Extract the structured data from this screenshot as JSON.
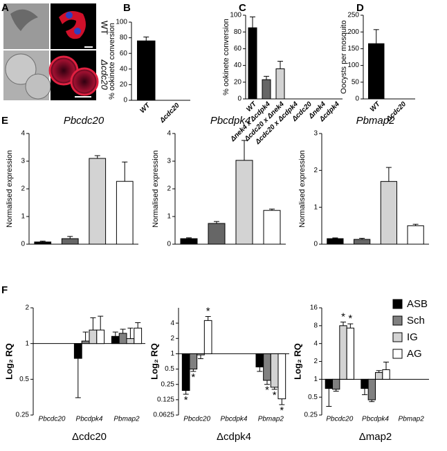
{
  "panel_labels": [
    "A",
    "B",
    "C",
    "D",
    "E",
    "F"
  ],
  "panel_a": {
    "labels": [
      "WT",
      "Δcdc20"
    ]
  },
  "legend": {
    "items": [
      {
        "name": "ASB",
        "color": "#000000"
      },
      {
        "name": "Sch",
        "color": "#808080"
      },
      {
        "name": "IG",
        "color": "#d3d3d3"
      },
      {
        "name": "AG",
        "color": "#ffffff"
      }
    ]
  },
  "chart_data": [
    {
      "type": "bar",
      "ylabel": "% ookinete conversion",
      "categories": [
        "WT",
        "Δcdc20"
      ],
      "values": [
        76,
        0
      ],
      "errors": [
        5,
        0
      ],
      "colors": [
        "#000000",
        "#000000"
      ],
      "ylim": [
        0,
        100
      ],
      "yticks": [
        0,
        20,
        40,
        60,
        80,
        100
      ]
    },
    {
      "type": "bar",
      "ylabel": "% ookinete conversion",
      "categories": [
        "WT",
        "Δnek4 x Δcdpk4",
        "Δcdc20 x Δnek4",
        "Δcdc20 x Δcdpk4",
        "Δcdc20",
        "Δnek4",
        "Δcdpk4"
      ],
      "values": [
        85,
        23,
        36,
        0,
        0,
        0,
        0
      ],
      "errors": [
        13,
        4,
        9,
        0,
        0,
        0,
        0
      ],
      "colors": [
        "#000000",
        "#666666",
        "#d3d3d3",
        "#000000",
        "#000000",
        "#000000",
        "#000000"
      ],
      "ylim": [
        0,
        100
      ],
      "yticks": [
        0,
        20,
        40,
        60,
        80,
        100
      ]
    },
    {
      "type": "bar",
      "ylabel": "Oocysts per mosquito",
      "categories": [
        "WT",
        "Δcdc20"
      ],
      "values": [
        165,
        0
      ],
      "errors": [
        42,
        0
      ],
      "colors": [
        "#000000",
        "#000000"
      ],
      "ylim": [
        0,
        250
      ],
      "yticks": [
        0,
        50,
        100,
        150,
        200,
        250
      ]
    },
    {
      "type": "bar",
      "title": "Pbcdc20",
      "ylabel": "Normalised expression",
      "categories": [
        null,
        null,
        null,
        null
      ],
      "values": [
        0.08,
        0.2,
        3.1,
        2.27
      ],
      "errors": [
        0.03,
        0.08,
        0.1,
        0.7
      ],
      "colors": [
        "#000000",
        "#666666",
        "#d3d3d3",
        "#ffffff"
      ],
      "ylim": [
        0,
        4
      ],
      "yticks": [
        0,
        1,
        2,
        3,
        4
      ]
    },
    {
      "type": "bar",
      "title": "Pbcdpk4",
      "ylabel": "Normalised expression",
      "categories": [
        null,
        null,
        null,
        null
      ],
      "values": [
        0.2,
        0.75,
        3.03,
        1.22
      ],
      "errors": [
        0.03,
        0.07,
        0.72,
        0.05
      ],
      "colors": [
        "#000000",
        "#666666",
        "#d3d3d3",
        "#ffffff"
      ],
      "ylim": [
        0,
        4
      ],
      "yticks": [
        0,
        1,
        2,
        3,
        4
      ]
    },
    {
      "type": "bar",
      "title": "Pbmap2",
      "ylabel": "Normalised expression",
      "categories": [
        null,
        null,
        null,
        null
      ],
      "values": [
        0.15,
        0.13,
        1.7,
        0.5
      ],
      "errors": [
        0.02,
        0.03,
        0.38,
        0.04
      ],
      "colors": [
        "#000000",
        "#666666",
        "#d3d3d3",
        "#ffffff"
      ],
      "ylim": [
        0,
        3
      ],
      "yticks": [
        0,
        1,
        2,
        3
      ]
    },
    {
      "type": "grouped",
      "log2": true,
      "base": 1,
      "ylabel": "Log₂ RQ",
      "xlabel": "Δcdc20",
      "categories": [
        "Pbcdc20",
        "Pbcdpk4",
        "Pbmap2"
      ],
      "ylim": [
        0.25,
        2
      ],
      "yticks": [
        0.25,
        0.5,
        1,
        2
      ],
      "series": [
        {
          "color": "#000000",
          "values": [
            null,
            0.75,
            1.15
          ],
          "errors": [
            null,
            0.4,
            0.1
          ],
          "annotations": [
            null,
            null,
            null
          ]
        },
        {
          "color": "#808080",
          "values": [
            null,
            1.05,
            1.22
          ],
          "errors": [
            null,
            0.2,
            0.1
          ],
          "annotations": [
            null,
            null,
            null
          ]
        },
        {
          "color": "#d3d3d3",
          "values": [
            null,
            1.3,
            1.1
          ],
          "errors": [
            null,
            0.35,
            0.25
          ],
          "annotations": [
            null,
            null,
            null
          ]
        },
        {
          "color": "#ffffff",
          "values": [
            null,
            1.3,
            1.35
          ],
          "errors": [
            null,
            0.4,
            0.15
          ],
          "annotations": [
            null,
            null,
            null
          ]
        }
      ]
    },
    {
      "type": "grouped",
      "log2": true,
      "base": 1,
      "ylabel": "Log₂ RQ",
      "xlabel": "Δcdpk4",
      "categories": [
        "Pbcdc20",
        "Pbcdpk4",
        "Pbmap2"
      ],
      "ylim": [
        0.0625,
        8
      ],
      "yticks": [
        0.0625,
        0.125,
        0.25,
        0.5,
        1,
        2,
        4
      ],
      "series": [
        {
          "color": "#000000",
          "values": [
            0.19,
            null,
            0.55
          ],
          "errors": [
            0.03,
            null,
            0.1
          ],
          "annotations": [
            "*",
            null,
            null
          ]
        },
        {
          "color": "#808080",
          "values": [
            0.5,
            null,
            0.3
          ],
          "errors": [
            0.05,
            null,
            0.05
          ],
          "annotations": [
            "*",
            null,
            "*"
          ]
        },
        {
          "color": "#d3d3d3",
          "values": [
            0.95,
            null,
            0.22
          ],
          "errors": [
            0.15,
            null,
            0.02
          ],
          "annotations": [
            null,
            null,
            "*"
          ]
        },
        {
          "color": "#ffffff",
          "values": [
            4.5,
            null,
            0.13
          ],
          "errors": [
            0.9,
            null,
            0.03
          ],
          "annotations": [
            "*",
            null,
            "*"
          ]
        }
      ]
    },
    {
      "type": "grouped",
      "log2": true,
      "base": 1,
      "ylabel": "Log₂ RQ",
      "xlabel": "Δmap2",
      "categories": [
        "Pbcdc20",
        "Pbcdpk4",
        "Pbmap2"
      ],
      "ylim": [
        0.25,
        16
      ],
      "yticks": [
        0.25,
        0.5,
        1,
        2,
        4,
        8,
        16
      ],
      "series": [
        {
          "color": "#000000",
          "values": [
            0.7,
            0.7,
            null
          ],
          "errors": [
            0.35,
            0.15,
            null
          ],
          "annotations": [
            null,
            null,
            null
          ]
        },
        {
          "color": "#808080",
          "values": [
            0.68,
            0.45,
            null
          ],
          "errors": [
            0.05,
            0.03,
            null
          ],
          "annotations": [
            null,
            null,
            null
          ]
        },
        {
          "color": "#d3d3d3",
          "values": [
            8,
            1.3,
            null
          ],
          "errors": [
            1.2,
            0.1,
            null
          ],
          "annotations": [
            "*",
            null,
            null
          ]
        },
        {
          "color": "#ffffff",
          "values": [
            7.3,
            1.45,
            null
          ],
          "errors": [
            1.3,
            0.5,
            null
          ],
          "annotations": [
            "*",
            null,
            null
          ]
        }
      ]
    }
  ]
}
